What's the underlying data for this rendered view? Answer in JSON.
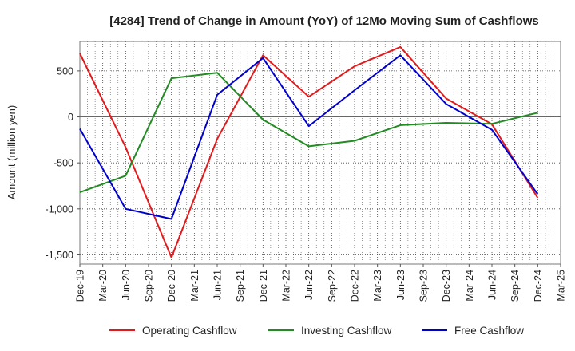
{
  "chart_data": {
    "type": "line",
    "title": "[4284]  Trend of Change in Amount (YoY) of 12Mo Moving Sum of Cashflows",
    "ylabel": "Amount (million yen)",
    "xlabel": "",
    "ylim": [
      -1600,
      820
    ],
    "yticks": [
      500,
      0,
      -500,
      -1000,
      -1500
    ],
    "ytick_labels": [
      "500",
      "0",
      "-500",
      "-1,000",
      "-1,500"
    ],
    "x_categories": [
      "Dec-19",
      "Mar-20",
      "Jun-20",
      "Sep-20",
      "Dec-20",
      "Mar-21",
      "Jun-21",
      "Sep-21",
      "Dec-21",
      "Mar-22",
      "Jun-22",
      "Sep-22",
      "Dec-22",
      "Mar-23",
      "Jun-23",
      "Sep-23",
      "Dec-23",
      "Mar-24",
      "Jun-24",
      "Sep-24",
      "Dec-24",
      "Mar-25"
    ],
    "series": [
      {
        "name": "Operating Cashflow",
        "color": "#e31a1c",
        "points": [
          [
            0,
            690
          ],
          [
            2,
            -330
          ],
          [
            4,
            -1530
          ],
          [
            6,
            -240
          ],
          [
            8,
            670
          ],
          [
            10,
            220
          ],
          [
            12,
            550
          ],
          [
            14,
            760
          ],
          [
            16,
            200
          ],
          [
            18,
            -80
          ],
          [
            20,
            -880
          ]
        ]
      },
      {
        "name": "Investing Cashflow",
        "color": "#238b23",
        "points": [
          [
            0,
            -820
          ],
          [
            2,
            -640
          ],
          [
            4,
            420
          ],
          [
            6,
            480
          ],
          [
            8,
            -30
          ],
          [
            10,
            -320
          ],
          [
            12,
            -260
          ],
          [
            14,
            -90
          ],
          [
            16,
            -65
          ],
          [
            18,
            -75
          ],
          [
            20,
            45
          ]
        ]
      },
      {
        "name": "Free Cashflow",
        "color": "#0000cc",
        "points": [
          [
            0,
            -130
          ],
          [
            2,
            -1000
          ],
          [
            4,
            -1110
          ],
          [
            6,
            240
          ],
          [
            8,
            640
          ],
          [
            10,
            -100
          ],
          [
            12,
            290
          ],
          [
            14,
            670
          ],
          [
            16,
            140
          ],
          [
            18,
            -140
          ],
          [
            20,
            -840
          ]
        ]
      }
    ],
    "legend_position": "bottom"
  }
}
